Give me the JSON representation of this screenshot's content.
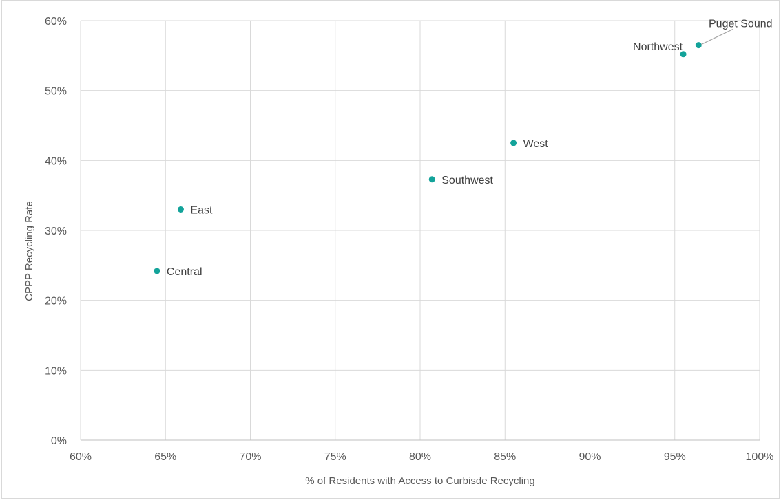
{
  "chart_data": {
    "type": "scatter",
    "title": "",
    "xlabel": "% of Residents with Access to Curbisde Recycling",
    "ylabel": "CPPP Recycling Rate",
    "xlim": [
      0.6,
      1.0
    ],
    "ylim": [
      0.0,
      0.6
    ],
    "x_ticks": [
      "60%",
      "65%",
      "70%",
      "75%",
      "80%",
      "85%",
      "90%",
      "95%",
      "100%"
    ],
    "y_ticks": [
      "0%",
      "10%",
      "20%",
      "30%",
      "40%",
      "50%",
      "60%"
    ],
    "grid": true,
    "legend": "none",
    "marker_color": "#13a39a",
    "points": [
      {
        "label": "Central",
        "x": 0.645,
        "y": 0.242
      },
      {
        "label": "East",
        "x": 0.659,
        "y": 0.33
      },
      {
        "label": "Southwest",
        "x": 0.807,
        "y": 0.373
      },
      {
        "label": "West",
        "x": 0.855,
        "y": 0.425
      },
      {
        "label": "Northwest",
        "x": 0.955,
        "y": 0.552
      },
      {
        "label": "Puget Sound",
        "x": 0.964,
        "y": 0.565
      }
    ]
  }
}
